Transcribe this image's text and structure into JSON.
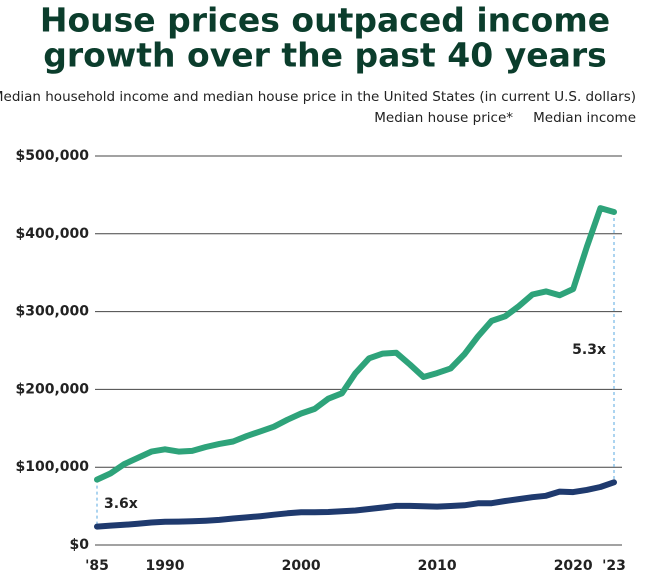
{
  "chart_data": {
    "type": "line",
    "title": [
      "House prices outpaced income",
      "growth over the past 40 years"
    ],
    "subtitle": "Median household income and median house price in the United States (in current U.S. dollars)",
    "x": [
      1985,
      1986,
      1987,
      1988,
      1989,
      1990,
      1991,
      1992,
      1993,
      1994,
      1995,
      1996,
      1997,
      1998,
      1999,
      2000,
      2001,
      2002,
      2003,
      2004,
      2005,
      2006,
      2007,
      2008,
      2009,
      2010,
      2011,
      2012,
      2013,
      2014,
      2015,
      2016,
      2017,
      2018,
      2019,
      2020,
      2021,
      2022,
      2023
    ],
    "series": [
      {
        "name": "Median house price*",
        "color": "#2ea37a",
        "values": [
          84000,
          92000,
          104000,
          112000,
          120000,
          123000,
          120000,
          121000,
          126000,
          130000,
          133000,
          140000,
          146000,
          152000,
          161000,
          169000,
          175000,
          188000,
          195000,
          221000,
          240000,
          246000,
          247000,
          232000,
          216000,
          221000,
          227000,
          245000,
          268000,
          288000,
          294000,
          307000,
          322000,
          326000,
          321000,
          329000,
          383000,
          433000,
          428000
        ]
      },
      {
        "name": "Median income",
        "color": "#1f3a6e",
        "values": [
          23600,
          24900,
          26000,
          27200,
          28900,
          29900,
          30100,
          30600,
          31200,
          32300,
          34100,
          35500,
          37000,
          38900,
          40700,
          42000,
          42200,
          42400,
          43300,
          44300,
          46300,
          48200,
          50200,
          50300,
          49800,
          49300,
          50100,
          51000,
          53600,
          53700,
          56500,
          59000,
          61400,
          63200,
          68700,
          68000,
          70800,
          74600,
          80600
        ]
      }
    ],
    "annotations": [
      "3.6x",
      "5.3x"
    ],
    "xlim": [
      1985,
      2023
    ],
    "xticks": [
      {
        "value": 1985,
        "label": "'85"
      },
      1990,
      2000,
      2010,
      2020,
      {
        "value": 2023,
        "label": "'23"
      }
    ],
    "ylim": [
      0,
      500000
    ],
    "yticks": [
      {
        "value": 0,
        "label": "$0"
      },
      {
        "value": 100000,
        "label": "$100,000"
      },
      {
        "value": 200000,
        "label": "$200,000"
      },
      {
        "value": 300000,
        "label": "$300,000"
      },
      {
        "value": 400000,
        "label": "$400,000"
      },
      {
        "value": 500000,
        "label": "$500,000"
      }
    ],
    "grid": true
  }
}
